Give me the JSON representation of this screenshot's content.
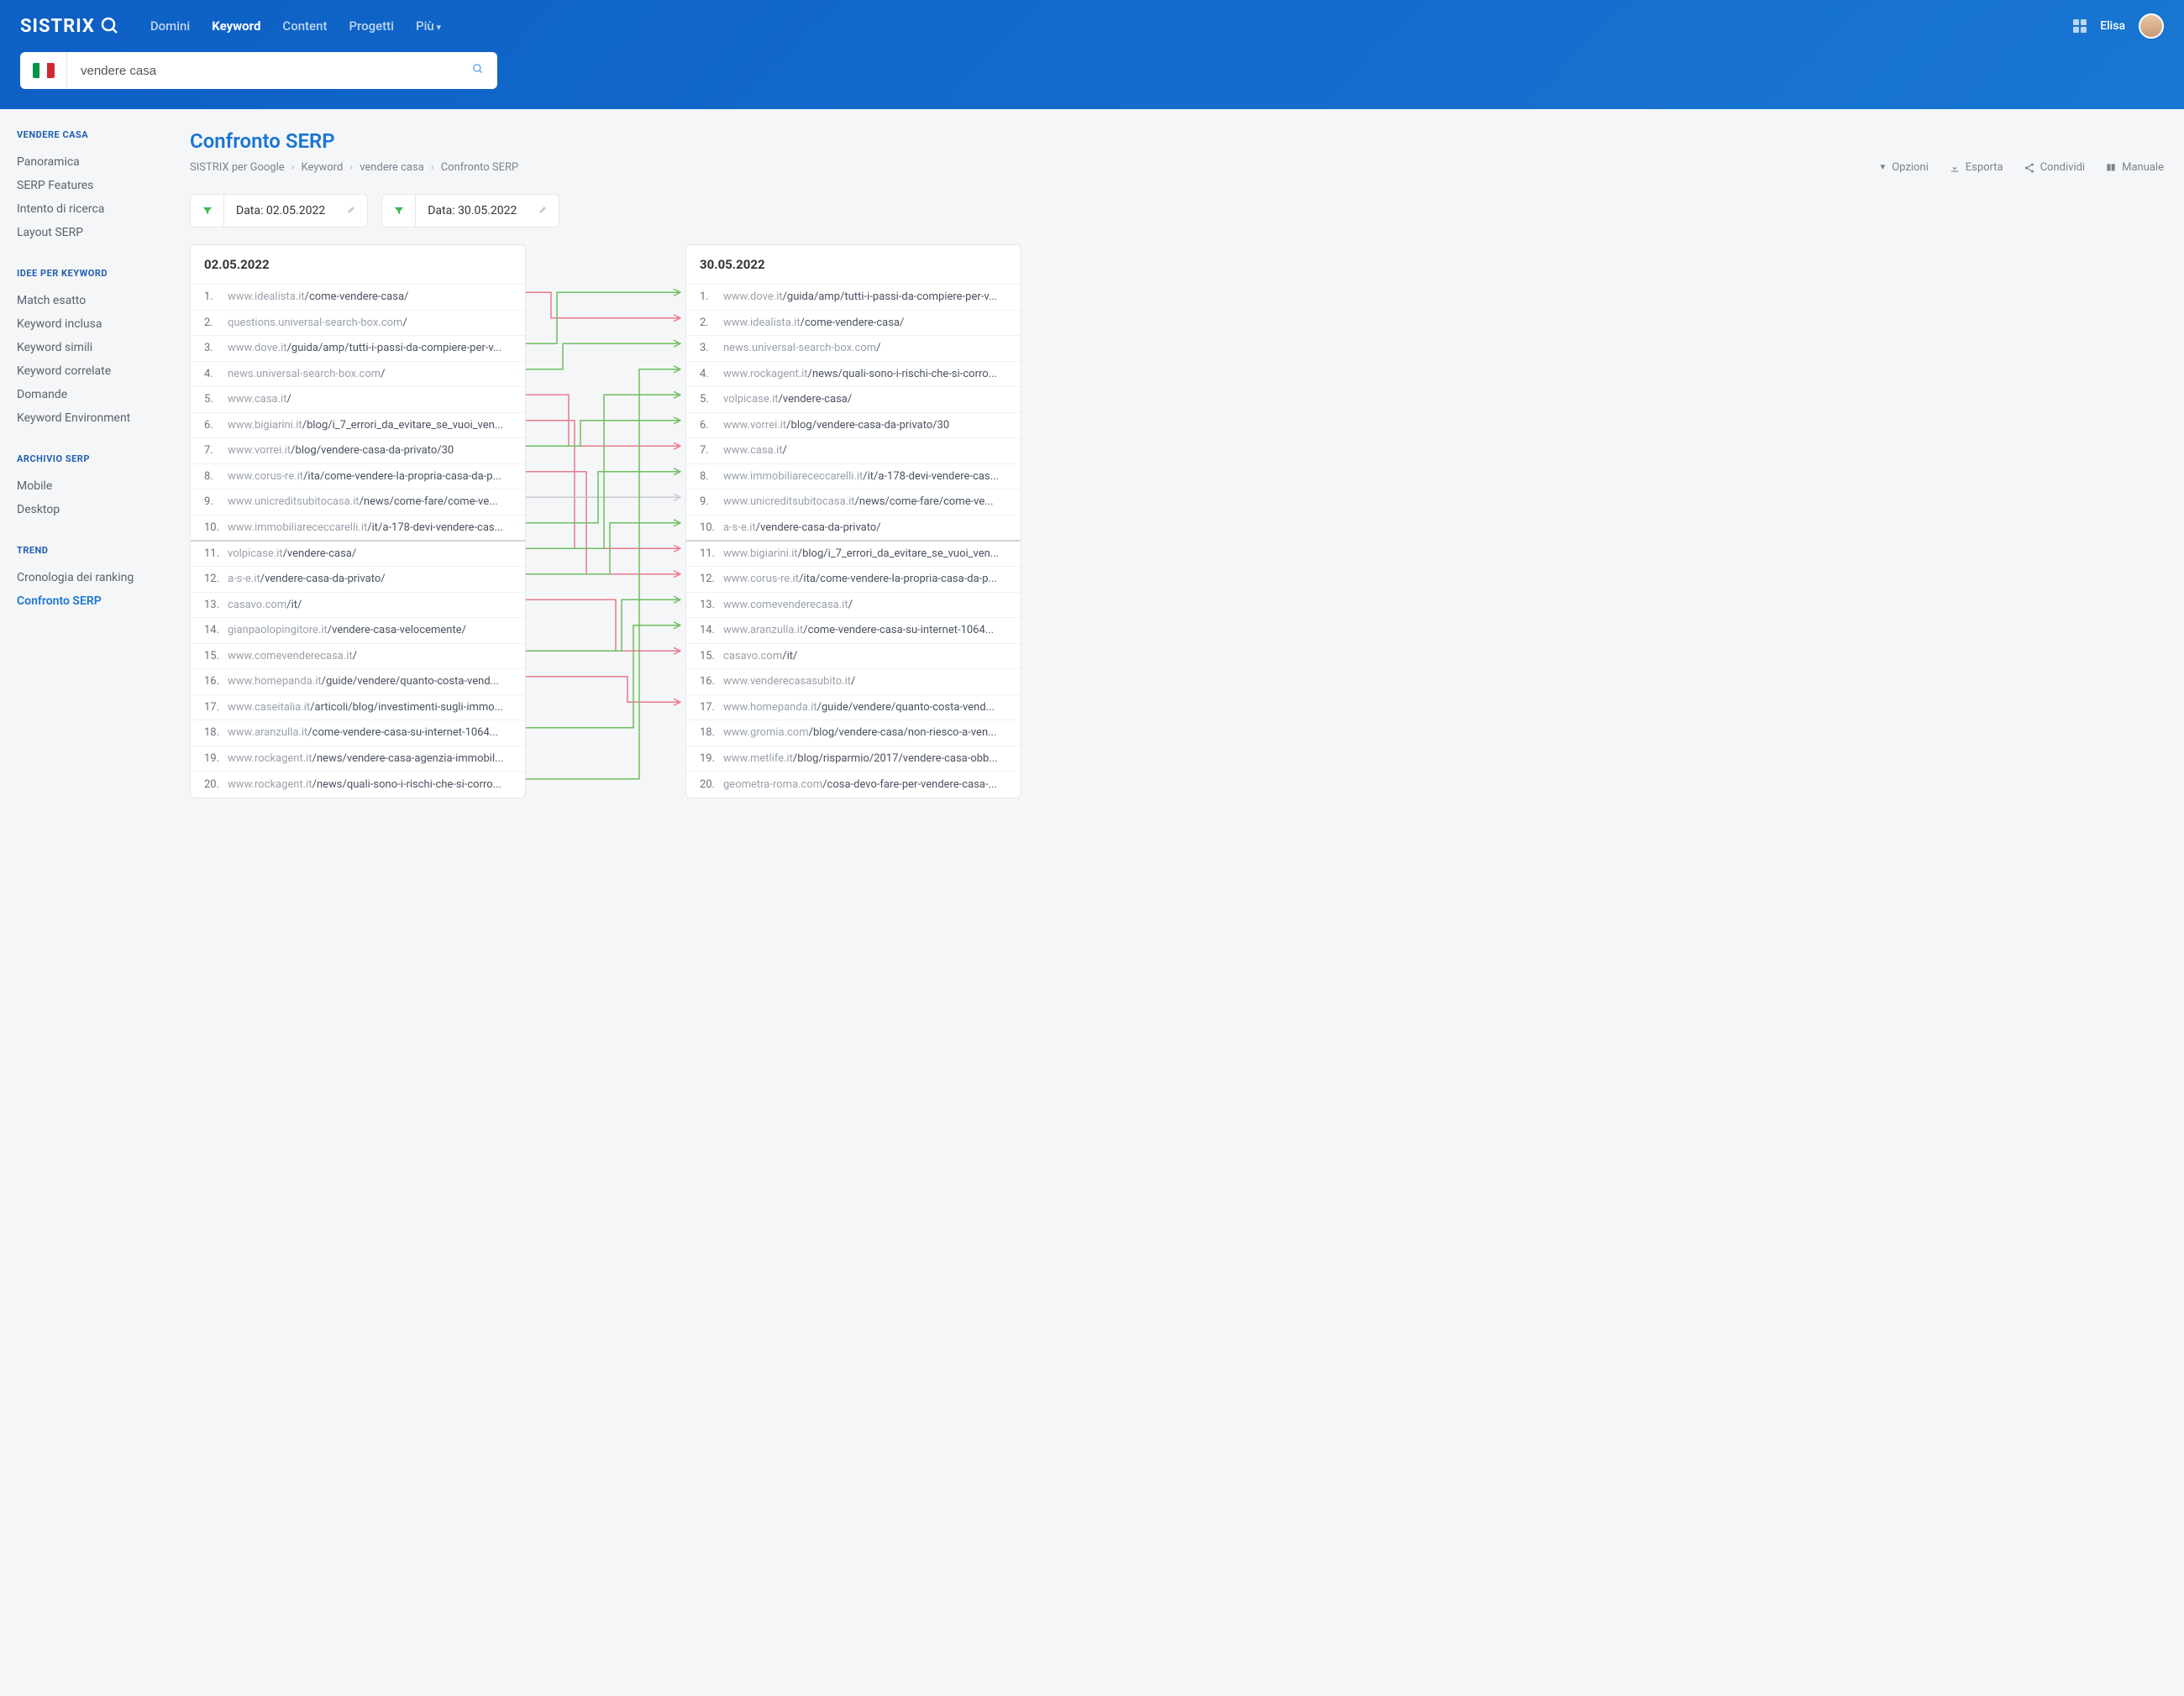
{
  "brand": "SISTRIX",
  "nav": {
    "items": [
      "Domini",
      "Keyword",
      "Content",
      "Progetti",
      "Più"
    ],
    "active": 1
  },
  "user": {
    "name": "Elisa"
  },
  "search": {
    "value": "vendere casa",
    "flag_colors": [
      "#009246",
      "#ffffff",
      "#ce2b37"
    ]
  },
  "sidebar": {
    "sections": [
      {
        "title": "VENDERE CASA",
        "links": [
          "Panoramica",
          "SERP Features",
          "Intento di ricerca",
          "Layout SERP"
        ]
      },
      {
        "title": "IDEE PER KEYWORD",
        "links": [
          "Match esatto",
          "Keyword inclusa",
          "Keyword simili",
          "Keyword correlate",
          "Domande",
          "Keyword Environment"
        ]
      },
      {
        "title": "ARCHIVIO SERP",
        "links": [
          "Mobile",
          "Desktop"
        ]
      },
      {
        "title": "TREND",
        "links": [
          "Cronologia dei ranking",
          "Confronto SERP"
        ],
        "active": 1
      }
    ]
  },
  "page": {
    "title": "Confronto SERP",
    "breadcrumb": [
      "SISTRIX per Google",
      "Keyword",
      "vendere casa",
      "Confronto SERP"
    ],
    "actions": [
      "Opzioni",
      "Esporta",
      "Condividi",
      "Manuale"
    ]
  },
  "filters": [
    {
      "label": "Data: 02.05.2022"
    },
    {
      "label": "Data: 30.05.2022"
    }
  ],
  "colors": {
    "green": "#6cbf5c",
    "red": "#e87a8b",
    "gray": "#c6cad2"
  },
  "left": {
    "date": "02.05.2022",
    "rows": [
      {
        "rank": "1.",
        "domain": "www.idealista.it",
        "path": "/come-vendere-casa/"
      },
      {
        "rank": "2.",
        "domain": "questions.universal-search-box.com",
        "path": "/"
      },
      {
        "rank": "3.",
        "domain": "www.dove.it",
        "path": "/guida/amp/tutti-i-passi-da-compiere-per-v..."
      },
      {
        "rank": "4.",
        "domain": "news.universal-search-box.com",
        "path": "/"
      },
      {
        "rank": "5.",
        "domain": "www.casa.it",
        "path": "/"
      },
      {
        "rank": "6.",
        "domain": "www.bigiarini.it",
        "path": "/blog/i_7_errori_da_evitare_se_vuoi_ven..."
      },
      {
        "rank": "7.",
        "domain": "www.vorrei.it",
        "path": "/blog/vendere-casa-da-privato/30"
      },
      {
        "rank": "8.",
        "domain": "www.corus-re.it",
        "path": "/ita/come-vendere-la-propria-casa-da-p..."
      },
      {
        "rank": "9.",
        "domain": "www.unicreditsubitocasa.it",
        "path": "/news/come-fare/come-ve..."
      },
      {
        "rank": "10.",
        "domain": "www.immobiliarececcarelli.it",
        "path": "/it/a-178-devi-vendere-cas..."
      },
      {
        "rank": "11.",
        "domain": "volpicase.it",
        "path": "/vendere-casa/"
      },
      {
        "rank": "12.",
        "domain": "a-s-e.it",
        "path": "/vendere-casa-da-privato/"
      },
      {
        "rank": "13.",
        "domain": "casavo.com",
        "path": "/it/"
      },
      {
        "rank": "14.",
        "domain": "gianpaolopingitore.it",
        "path": "/vendere-casa-velocemente/"
      },
      {
        "rank": "15.",
        "domain": "www.comevenderecasa.it",
        "path": "/"
      },
      {
        "rank": "16.",
        "domain": "www.homepanda.it",
        "path": "/guide/vendere/quanto-costa-vend..."
      },
      {
        "rank": "17.",
        "domain": "www.caseitalia.it",
        "path": "/articoli/blog/investimenti-sugli-immo..."
      },
      {
        "rank": "18.",
        "domain": "www.aranzulla.it",
        "path": "/come-vendere-casa-su-internet-1064..."
      },
      {
        "rank": "19.",
        "domain": "www.rockagent.it",
        "path": "/news/vendere-casa-agenzia-immobil..."
      },
      {
        "rank": "20.",
        "domain": "www.rockagent.it",
        "path": "/news/quali-sono-i-rischi-che-si-corro..."
      }
    ]
  },
  "right": {
    "date": "30.05.2022",
    "rows": [
      {
        "rank": "1.",
        "domain": "www.dove.it",
        "path": "/guida/amp/tutti-i-passi-da-compiere-per-v..."
      },
      {
        "rank": "2.",
        "domain": "www.idealista.it",
        "path": "/come-vendere-casa/"
      },
      {
        "rank": "3.",
        "domain": "news.universal-search-box.com",
        "path": "/"
      },
      {
        "rank": "4.",
        "domain": "www.rockagent.it",
        "path": "/news/quali-sono-i-rischi-che-si-corro..."
      },
      {
        "rank": "5.",
        "domain": "volpicase.it",
        "path": "/vendere-casa/"
      },
      {
        "rank": "6.",
        "domain": "www.vorrei.it",
        "path": "/blog/vendere-casa-da-privato/30"
      },
      {
        "rank": "7.",
        "domain": "www.casa.it",
        "path": "/"
      },
      {
        "rank": "8.",
        "domain": "www.immobiliarececcarelli.it",
        "path": "/it/a-178-devi-vendere-cas..."
      },
      {
        "rank": "9.",
        "domain": "www.unicreditsubitocasa.it",
        "path": "/news/come-fare/come-ve..."
      },
      {
        "rank": "10.",
        "domain": "a-s-e.it",
        "path": "/vendere-casa-da-privato/"
      },
      {
        "rank": "11.",
        "domain": "www.bigiarini.it",
        "path": "/blog/i_7_errori_da_evitare_se_vuoi_ven..."
      },
      {
        "rank": "12.",
        "domain": "www.corus-re.it",
        "path": "/ita/come-vendere-la-propria-casa-da-p..."
      },
      {
        "rank": "13.",
        "domain": "www.comevenderecasa.it",
        "path": "/"
      },
      {
        "rank": "14.",
        "domain": "www.aranzulla.it",
        "path": "/come-vendere-casa-su-internet-1064..."
      },
      {
        "rank": "15.",
        "domain": "casavo.com",
        "path": "/it/"
      },
      {
        "rank": "16.",
        "domain": "www.venderecasasubito.it",
        "path": "/"
      },
      {
        "rank": "17.",
        "domain": "www.homepanda.it",
        "path": "/guide/vendere/quanto-costa-vend..."
      },
      {
        "rank": "18.",
        "domain": "www.gromia.com",
        "path": "/blog/vendere-casa/non-riesco-a-ven..."
      },
      {
        "rank": "19.",
        "domain": "www.metlife.it",
        "path": "/blog/risparmio/2017/vendere-casa-obb..."
      },
      {
        "rank": "20.",
        "domain": "geometra-roma.com",
        "path": "/cosa-devo-fare-per-vendere-casa-..."
      }
    ]
  },
  "connections": [
    {
      "from": 1,
      "to": 2,
      "color": "red"
    },
    {
      "from": 3,
      "to": 1,
      "color": "green"
    },
    {
      "from": 4,
      "to": 3,
      "color": "green"
    },
    {
      "from": 5,
      "to": 7,
      "color": "red"
    },
    {
      "from": 6,
      "to": 11,
      "color": "red"
    },
    {
      "from": 7,
      "to": 6,
      "color": "green"
    },
    {
      "from": 8,
      "to": 12,
      "color": "red"
    },
    {
      "from": 9,
      "to": 9,
      "color": "gray"
    },
    {
      "from": 10,
      "to": 8,
      "color": "green"
    },
    {
      "from": 11,
      "to": 5,
      "color": "green"
    },
    {
      "from": 12,
      "to": 10,
      "color": "green"
    },
    {
      "from": 13,
      "to": 15,
      "color": "red"
    },
    {
      "from": 15,
      "to": 13,
      "color": "green"
    },
    {
      "from": 16,
      "to": 17,
      "color": "red"
    },
    {
      "from": 18,
      "to": 14,
      "color": "green"
    },
    {
      "from": 20,
      "to": 4,
      "color": "green"
    }
  ]
}
